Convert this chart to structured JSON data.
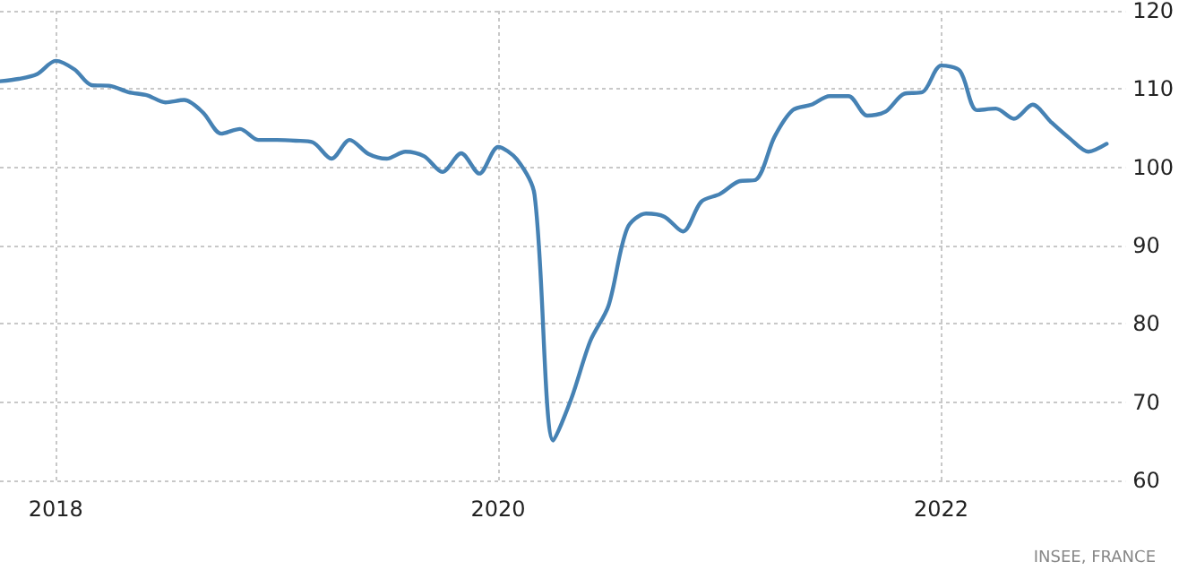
{
  "chart_data": {
    "type": "line",
    "annotations": [
      "INSEE, FRANCE"
    ],
    "x": [
      "2017-10",
      "2017-11",
      "2017-12",
      "2018-01",
      "2018-02",
      "2018-03",
      "2018-04",
      "2018-05",
      "2018-06",
      "2018-07",
      "2018-08",
      "2018-09",
      "2018-10",
      "2018-11",
      "2018-12",
      "2019-01",
      "2019-02",
      "2019-03",
      "2019-04",
      "2019-05",
      "2019-06",
      "2019-07",
      "2019-08",
      "2019-09",
      "2019-10",
      "2019-11",
      "2019-12",
      "2020-01",
      "2020-02",
      "2020-03",
      "2020-04",
      "2020-05",
      "2020-06",
      "2020-07",
      "2020-08",
      "2020-09",
      "2020-10",
      "2020-11",
      "2020-12",
      "2021-01",
      "2021-02",
      "2021-03",
      "2021-04",
      "2021-05",
      "2021-06",
      "2021-07",
      "2021-08",
      "2021-09",
      "2021-10",
      "2021-11",
      "2021-12",
      "2022-01",
      "2022-02",
      "2022-03",
      "2022-04",
      "2022-05",
      "2022-06",
      "2022-07",
      "2022-08",
      "2022-09",
      "2022-10"
    ],
    "series": [
      {
        "color": "#4682b4",
        "values": [
          111.0,
          111.3,
          111.9,
          113.6,
          112.5,
          110.5,
          110.4,
          109.6,
          109.2,
          108.3,
          108.6,
          107.0,
          104.3,
          104.9,
          103.5,
          103.5,
          103.4,
          103.2,
          101.1,
          103.5,
          101.7,
          101.1,
          102.0,
          101.4,
          99.4,
          101.8,
          99.2,
          102.6,
          101.0,
          96.5,
          65.1,
          70.5,
          77.8,
          82.3,
          92.2,
          94.1,
          93.7,
          91.8,
          95.6,
          96.6,
          98.2,
          98.4,
          103.9,
          107.3,
          108.0,
          109.1,
          109.1,
          106.6,
          107.1,
          109.4,
          109.6,
          113.0,
          112.3,
          107.3,
          107.5,
          106.2,
          108.0,
          105.8,
          103.7,
          102.0,
          103.0
        ]
      }
    ],
    "xlim": [
      "2017-10",
      "2022-11"
    ],
    "xticks": [
      "2018",
      "2020",
      "2022"
    ],
    "ylim": [
      60,
      120
    ],
    "yticks": [
      60,
      70,
      80,
      90,
      100,
      110,
      120
    ],
    "grid": true,
    "marker": "none",
    "line_style": "solid"
  }
}
